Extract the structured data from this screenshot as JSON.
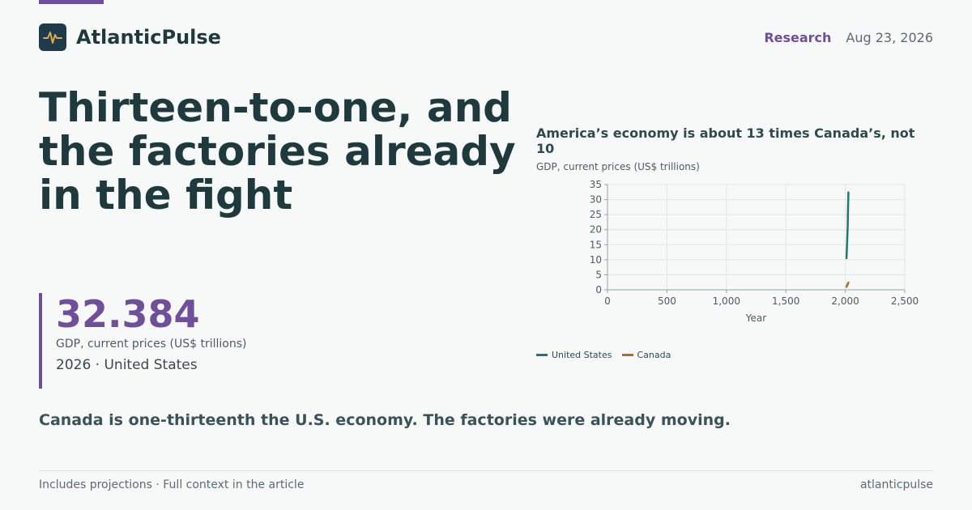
{
  "brand": {
    "name": "AtlanticPulse",
    "logo_icon": "pulse-wave-icon"
  },
  "header": {
    "section": "Research",
    "date": "Aug 23, 2026"
  },
  "headline": "Thirteen-to-one, and the factories already in the fight",
  "stat": {
    "value": "32.384",
    "label": "GDP, current prices (US$ trillions)",
    "context": "2026 · United States"
  },
  "dek": "Canada is one-thirteenth the U.S. economy. The factories were already moving.",
  "footer": {
    "note": "Includes projections · Full context in the article",
    "source": "atlanticpulse"
  },
  "colors": {
    "accent": "#6f4f9a",
    "us_series": "#1f7a6e",
    "canada_series": "#a8712a"
  },
  "chart_data": {
    "type": "line",
    "title": "America’s economy is about 13 times Canada’s, not 10",
    "subtitle": "GDP, current prices (US$ trillions)",
    "xlabel": "Year",
    "ylabel": "",
    "xlim": [
      0,
      2500
    ],
    "ylim": [
      0,
      35
    ],
    "x_ticks": [
      "0",
      "500",
      "1,000",
      "1,500",
      "2,000",
      "2,500"
    ],
    "y_ticks": [
      "0",
      "5",
      "10",
      "15",
      "20",
      "25",
      "30",
      "35"
    ],
    "grid": true,
    "legend": "bottom-left",
    "series": [
      {
        "name": "United States",
        "color": "#1f7a6e",
        "x": [
          2010,
          2012,
          2014,
          2016,
          2018,
          2020,
          2022,
          2024,
          2026
        ],
        "y": [
          10.5,
          12.5,
          14.5,
          16.5,
          19.0,
          21.0,
          25.5,
          29.0,
          32.4
        ]
      },
      {
        "name": "Canada",
        "color": "#a8712a",
        "x": [
          2010,
          2012,
          2014,
          2016,
          2018,
          2020,
          2022,
          2024,
          2026
        ],
        "y": [
          1.0,
          1.2,
          1.5,
          1.6,
          1.8,
          1.7,
          2.2,
          2.2,
          2.4
        ]
      }
    ]
  }
}
